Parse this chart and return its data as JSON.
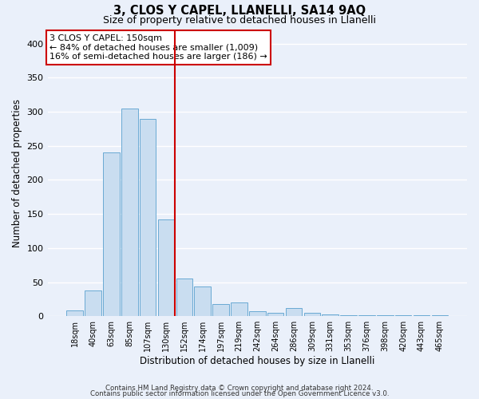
{
  "title": "3, CLOS Y CAPEL, LLANELLI, SA14 9AQ",
  "subtitle": "Size of property relative to detached houses in Llanelli",
  "xlabel": "Distribution of detached houses by size in Llanelli",
  "ylabel": "Number of detached properties",
  "bar_labels": [
    "18sqm",
    "40sqm",
    "63sqm",
    "85sqm",
    "107sqm",
    "130sqm",
    "152sqm",
    "174sqm",
    "197sqm",
    "219sqm",
    "242sqm",
    "264sqm",
    "286sqm",
    "309sqm",
    "331sqm",
    "353sqm",
    "376sqm",
    "398sqm",
    "420sqm",
    "443sqm",
    "465sqm"
  ],
  "bar_values": [
    8,
    38,
    240,
    305,
    290,
    142,
    55,
    44,
    18,
    20,
    7,
    5,
    12,
    5,
    3,
    2,
    2,
    1,
    1,
    1,
    1
  ],
  "bar_color": "#c9ddf0",
  "bar_edge_color": "#6aaad4",
  "red_line_index": 6,
  "annotation_title": "3 CLOS Y CAPEL: 150sqm",
  "annotation_line1": "← 84% of detached houses are smaller (1,009)",
  "annotation_line2": "16% of semi-detached houses are larger (186) →",
  "annotation_box_color": "#ffffff",
  "annotation_box_edge": "#cc0000",
  "red_line_color": "#cc0000",
  "ylim": [
    0,
    420
  ],
  "yticks": [
    0,
    50,
    100,
    150,
    200,
    250,
    300,
    350,
    400
  ],
  "background_color": "#eaf0fa",
  "footer1": "Contains HM Land Registry data © Crown copyright and database right 2024.",
  "footer2": "Contains public sector information licensed under the Open Government Licence v3.0."
}
